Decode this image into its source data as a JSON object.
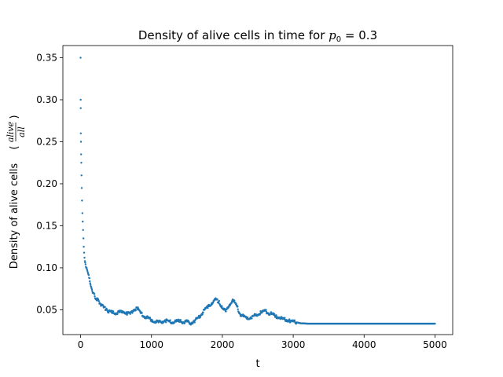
{
  "chart_data": {
    "type": "scatter",
    "title": "Density of alive cells in time for p₀ = 0.3",
    "title_main": "Density of alive cells in time for ",
    "title_math": "p",
    "title_sub": "0",
    "title_eq": " = 0.3",
    "xlabel": "t",
    "ylabel_text": "Density of alive cells",
    "ylabel_num": "alive",
    "ylabel_den": "all",
    "xlim": [
      -250,
      5250
    ],
    "ylim": [
      0.0205,
      0.3645
    ],
    "x_ticks": [
      0,
      1000,
      2000,
      3000,
      4000,
      5000
    ],
    "x_tick_labels": [
      "0",
      "1000",
      "2000",
      "3000",
      "4000",
      "5000"
    ],
    "y_ticks": [
      0.05,
      0.1,
      0.15,
      0.2,
      0.25,
      0.3,
      0.35
    ],
    "y_tick_labels": [
      "0.05",
      "0.10",
      "0.15",
      "0.20",
      "0.25",
      "0.30",
      "0.35"
    ],
    "grid": false,
    "marker_color": "#1f77b4",
    "series": [
      {
        "x": [
          0,
          1,
          2,
          3,
          5,
          7,
          10,
          13,
          16,
          20,
          25,
          30,
          35,
          40,
          45,
          50,
          55,
          60,
          70,
          80,
          90,
          100,
          110,
          120,
          130,
          140,
          150,
          160,
          180,
          200,
          220,
          240,
          260,
          280,
          300,
          330,
          360,
          400,
          450,
          500,
          550,
          600,
          650,
          700,
          750,
          800,
          850,
          900,
          950,
          1000,
          1050,
          1100,
          1150,
          1200,
          1250,
          1300,
          1350,
          1400,
          1450,
          1500,
          1550,
          1600,
          1650,
          1700,
          1750,
          1800,
          1850,
          1900,
          1950,
          2000,
          2050,
          2100,
          2150,
          2200,
          2250,
          2300,
          2350,
          2400,
          2450,
          2500,
          2550,
          2600,
          2650,
          2700,
          2750,
          2800,
          2850,
          2900,
          2950,
          3000,
          3050,
          3100,
          3200,
          3400,
          3600,
          3800,
          4000,
          4200,
          4400,
          4600,
          4800,
          5000
        ],
        "y": [
          0.35,
          0.3,
          0.29,
          0.26,
          0.25,
          0.235,
          0.225,
          0.21,
          0.195,
          0.18,
          0.165,
          0.155,
          0.145,
          0.135,
          0.125,
          0.118,
          0.112,
          0.108,
          0.104,
          0.1,
          0.098,
          0.095,
          0.092,
          0.088,
          0.084,
          0.08,
          0.077,
          0.074,
          0.07,
          0.066,
          0.063,
          0.062,
          0.06,
          0.057,
          0.055,
          0.053,
          0.05,
          0.048,
          0.047,
          0.046,
          0.047,
          0.048,
          0.046,
          0.045,
          0.05,
          0.052,
          0.046,
          0.042,
          0.04,
          0.038,
          0.036,
          0.035,
          0.036,
          0.037,
          0.036,
          0.035,
          0.036,
          0.037,
          0.035,
          0.036,
          0.034,
          0.036,
          0.04,
          0.044,
          0.05,
          0.054,
          0.058,
          0.062,
          0.06,
          0.052,
          0.048,
          0.056,
          0.062,
          0.055,
          0.045,
          0.042,
          0.04,
          0.041,
          0.043,
          0.044,
          0.047,
          0.049,
          0.046,
          0.045,
          0.042,
          0.041,
          0.039,
          0.038,
          0.037,
          0.036,
          0.035,
          0.034,
          0.0335,
          0.0335,
          0.0335,
          0.0335,
          0.0335,
          0.0335,
          0.0335,
          0.0335,
          0.0335,
          0.0335
        ]
      }
    ]
  }
}
